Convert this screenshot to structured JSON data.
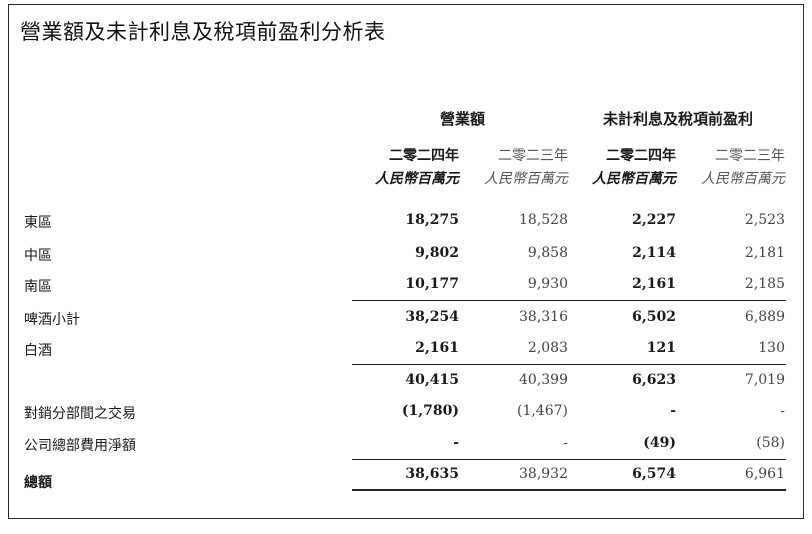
{
  "title": "營業額及未計利息及稅項前盈利分析表",
  "groups": {
    "turnover": "營業額",
    "ebit": "未計利息及稅項前盈利"
  },
  "columns": [
    {
      "year": "二零二四年",
      "unit": "人民幣百萬元"
    },
    {
      "year": "二零二三年",
      "unit": "人民幣百萬元"
    },
    {
      "year": "二零二四年",
      "unit": "人民幣百萬元"
    },
    {
      "year": "二零二三年",
      "unit": "人民幣百萬元"
    }
  ],
  "rows": [
    {
      "label": "東區",
      "values": [
        "18,275",
        "18,528",
        "2,227",
        "2,523"
      ]
    },
    {
      "label": "中區",
      "values": [
        "9,802",
        "9,858",
        "2,114",
        "2,181"
      ]
    },
    {
      "label": "南區",
      "values": [
        "10,177",
        "9,930",
        "2,161",
        "2,185"
      ]
    },
    {
      "label": "啤酒小計",
      "values": [
        "38,254",
        "38,316",
        "6,502",
        "6,889"
      ]
    },
    {
      "label": "白酒",
      "values": [
        "2,161",
        "2,083",
        "121",
        "130"
      ]
    },
    {
      "label": "",
      "values": [
        "40,415",
        "40,399",
        "6,623",
        "7,019"
      ]
    },
    {
      "label": "對銷分部間之交易",
      "values": [
        "(1,780)",
        "(1,467)",
        "-",
        "-"
      ]
    },
    {
      "label": "公司總部費用淨額",
      "values": [
        "-",
        "-",
        "(49)",
        "(58)"
      ]
    },
    {
      "label": "總額",
      "values": [
        "38,635",
        "38,932",
        "6,574",
        "6,961"
      ]
    }
  ]
}
